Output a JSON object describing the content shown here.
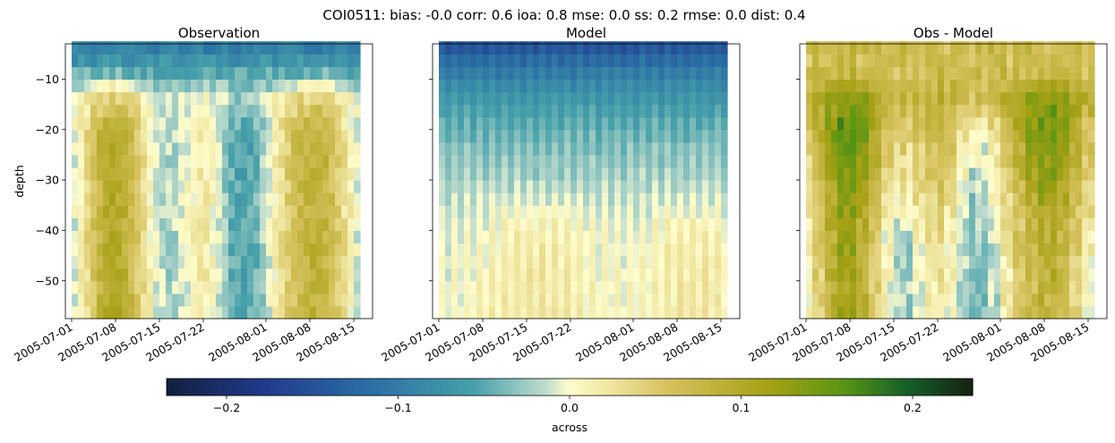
{
  "suptitle": "COI0511: bias: -0.0  corr: 0.6  ioa: 0.8  mse: 0.0  ss: 0.2  rmse: 0.0  dist: 0.4",
  "chart_data": [
    {
      "type": "heatmap",
      "title": "Observation",
      "ylabel": "depth",
      "xlabel": "",
      "x_ticks": [
        "2005-07-01",
        "2005-07-08",
        "2005-07-15",
        "2005-07-22",
        "2005-08-01",
        "2005-08-08",
        "2005-08-15"
      ],
      "y_ticks": [
        -10,
        -20,
        -30,
        -40,
        -50
      ],
      "xlim": [
        "2005-06-30",
        "2005-08-18"
      ],
      "ylim": [
        -57.5,
        -3
      ],
      "pattern": "surface negative (blue) top 12 m; alternating positive (yellow) and negative (teal) vertical bands below, strongest teal band around 2005-07-25",
      "colormap": "delta",
      "vmin": -0.235,
      "vmax": 0.235
    },
    {
      "type": "heatmap",
      "title": "Model",
      "ylabel": "",
      "xlabel": "",
      "x_ticks": [
        "2005-07-01",
        "2005-07-08",
        "2005-07-15",
        "2005-07-22",
        "2005-08-01",
        "2005-08-08",
        "2005-08-15"
      ],
      "y_ticks": [
        -10,
        -20,
        -30,
        -40,
        -50
      ],
      "xlim": [
        "2005-06-30",
        "2005-08-18"
      ],
      "ylim": [
        -57.5,
        -3
      ],
      "pattern": "negative (blue/teal) upper layer fading with depth; weakly positive (yellow) below about 35 m, strongest near 2005-07-15 and 2005-08-08",
      "colormap": "delta",
      "vmin": -0.235,
      "vmax": 0.235
    },
    {
      "type": "heatmap",
      "title": "Obs - Model",
      "ylabel": "",
      "xlabel": "",
      "x_ticks": [
        "2005-07-01",
        "2005-07-08",
        "2005-07-15",
        "2005-07-22",
        "2005-08-01",
        "2005-08-08",
        "2005-08-15"
      ],
      "y_ticks": [
        -10,
        -20,
        -30,
        -40,
        -50
      ],
      "xlim": [
        "2005-06-30",
        "2005-08-18"
      ],
      "ylim": [
        -57.5,
        -3
      ],
      "pattern": "mostly positive (yellow/olive) with green maxima; teal negative band around 2005-07-25 at depth",
      "colormap": "delta",
      "vmin": -0.235,
      "vmax": 0.235
    }
  ],
  "colorbar": {
    "label": "across",
    "ticks": [
      -0.2,
      -0.1,
      0.0,
      0.1,
      0.2
    ],
    "tick_labels": [
      "−0.2",
      "−0.1",
      "0.0",
      "0.1",
      "0.2"
    ],
    "vmin": -0.235,
    "vmax": 0.235,
    "orientation": "horizontal"
  }
}
